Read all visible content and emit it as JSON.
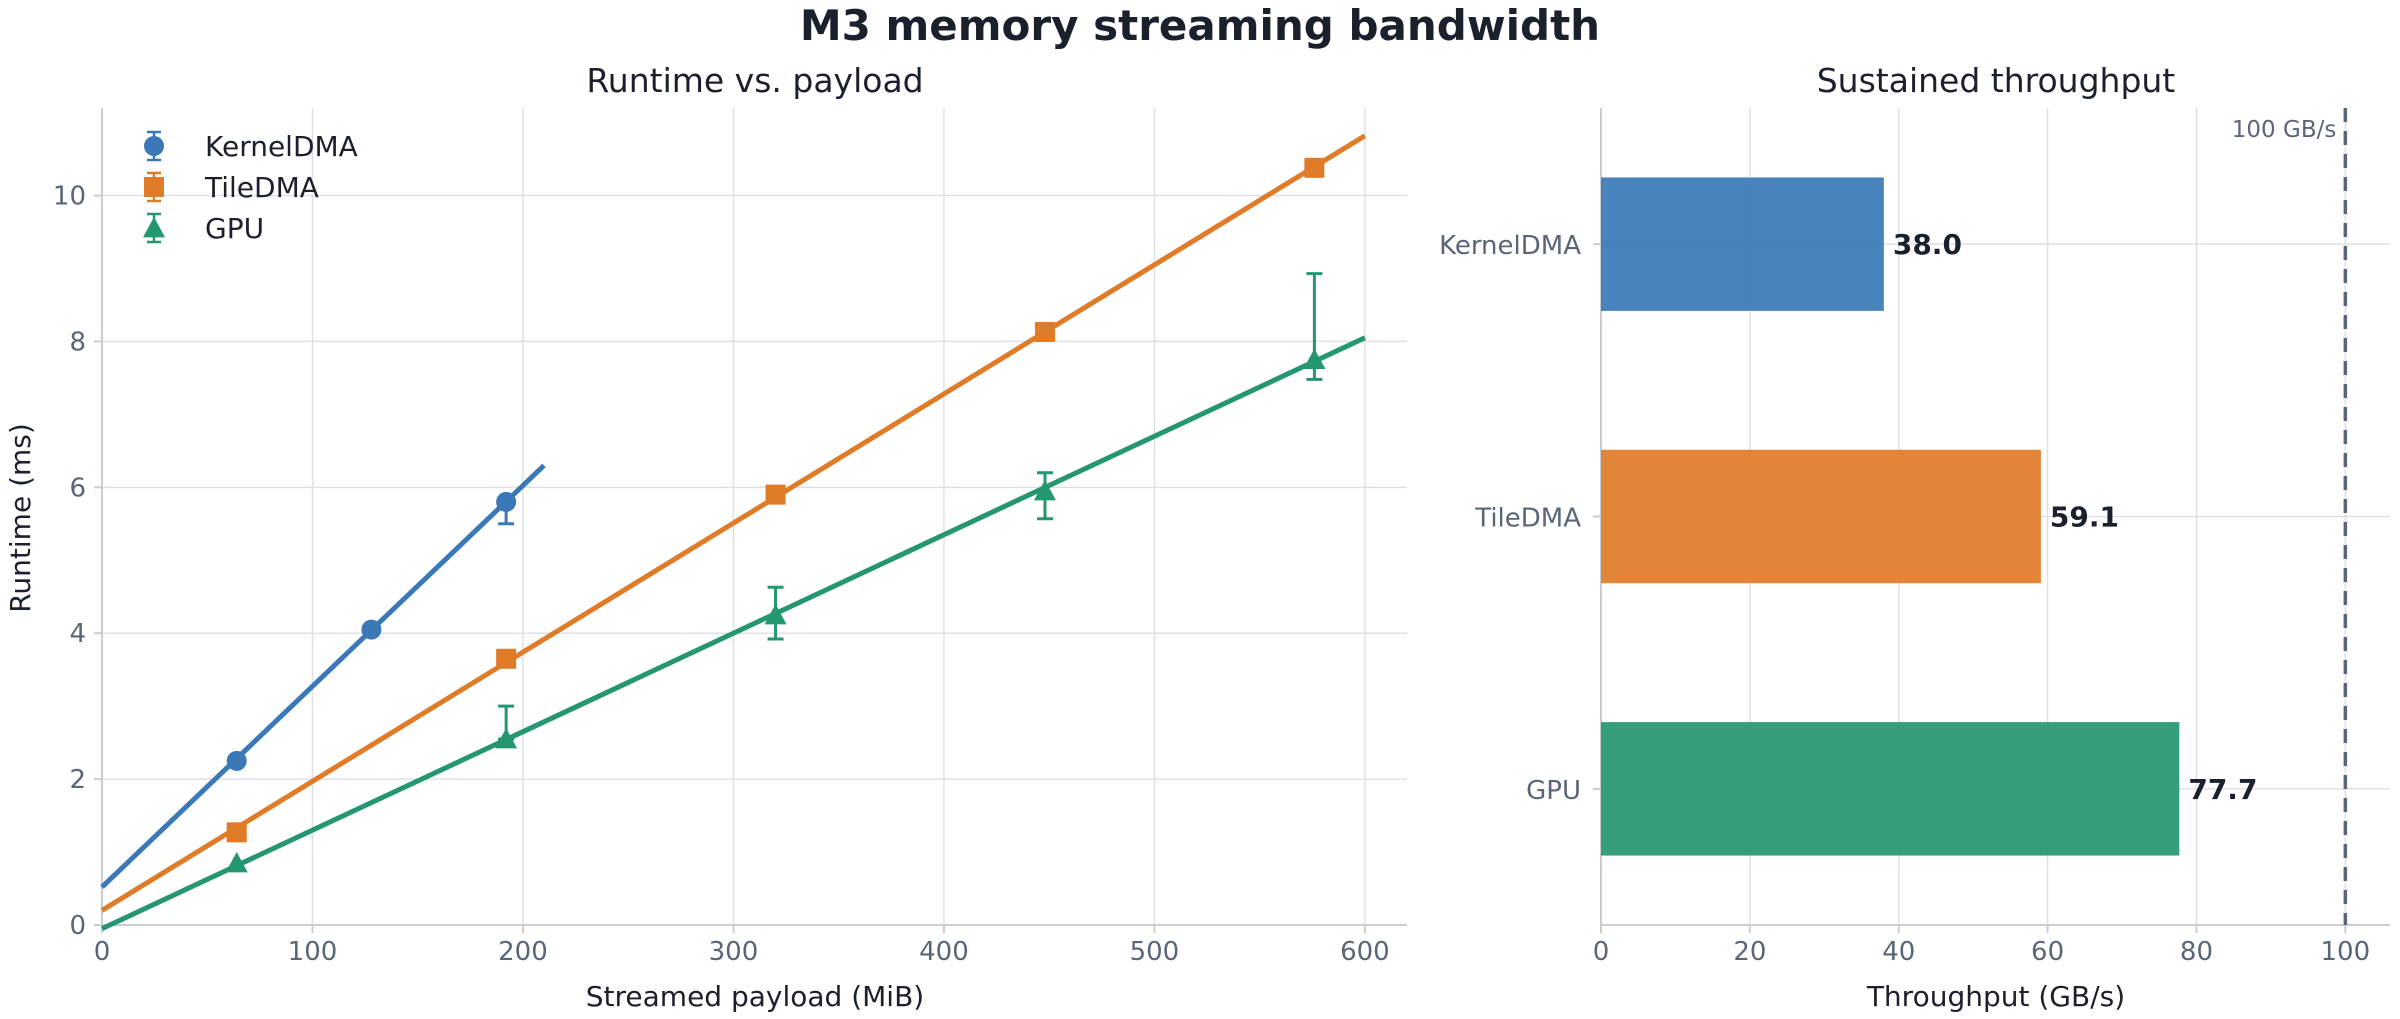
{
  "suptitle": "M3 memory streaming bandwidth",
  "chart_data": [
    {
      "type": "line",
      "title": "Runtime vs. payload",
      "xlabel": "Streamed payload (MiB)",
      "ylabel": "Runtime (ms)",
      "xlim": [
        0,
        620
      ],
      "ylim": [
        0,
        11.2
      ],
      "xticks": [
        0,
        100,
        200,
        300,
        400,
        500,
        600
      ],
      "yticks": [
        0,
        2,
        4,
        6,
        8,
        10
      ],
      "grid": true,
      "legend_position": "upper-left",
      "series": [
        {
          "name": "KernelDMA",
          "color": "#3a78b8",
          "marker": "circle",
          "x": [
            64,
            128,
            192
          ],
          "y": [
            2.25,
            4.05,
            5.8
          ],
          "err_low": [
            0.0,
            0.0,
            0.3
          ],
          "err_high": [
            0.0,
            0.0,
            0.0
          ],
          "fit_range": [
            0,
            210
          ],
          "fit_y": [
            0.52,
            6.3
          ]
        },
        {
          "name": "TileDMA",
          "color": "#e07b28",
          "marker": "square",
          "x": [
            64,
            192,
            320,
            448,
            576
          ],
          "y": [
            1.27,
            3.65,
            5.9,
            8.13,
            10.38
          ],
          "err_low": [
            0,
            0,
            0,
            0,
            0
          ],
          "err_high": [
            0,
            0,
            0,
            0,
            0
          ],
          "fit_range": [
            0,
            600
          ],
          "fit_y": [
            0.2,
            10.82
          ]
        },
        {
          "name": "GPU",
          "color": "#249670",
          "marker": "triangle",
          "x": [
            64,
            192,
            320,
            448,
            576
          ],
          "y": [
            0.85,
            2.55,
            4.25,
            5.95,
            7.75
          ],
          "err_low": [
            0.0,
            0.0,
            0.33,
            0.38,
            0.27
          ],
          "err_high": [
            0.0,
            0.45,
            0.38,
            0.25,
            1.18
          ],
          "fit_range": [
            0,
            600
          ],
          "fit_y": [
            -0.05,
            8.05
          ]
        }
      ]
    },
    {
      "type": "bar",
      "orientation": "horizontal",
      "title": "Sustained throughput",
      "xlabel": "Throughput (GB/s)",
      "xlim": [
        0,
        106
      ],
      "xticks": [
        0,
        20,
        40,
        60,
        80,
        100
      ],
      "categories": [
        "KernelDMA",
        "TileDMA",
        "GPU"
      ],
      "values": [
        38.0,
        59.1,
        77.7
      ],
      "value_labels": [
        "38.0",
        "59.1",
        "77.7"
      ],
      "colors": [
        "#3a78b8",
        "#e07b28",
        "#249670"
      ],
      "reference_line": {
        "value": 100,
        "label": "100 GB/s",
        "style": "dashed",
        "color": "#5a6678"
      },
      "grid": true
    }
  ]
}
